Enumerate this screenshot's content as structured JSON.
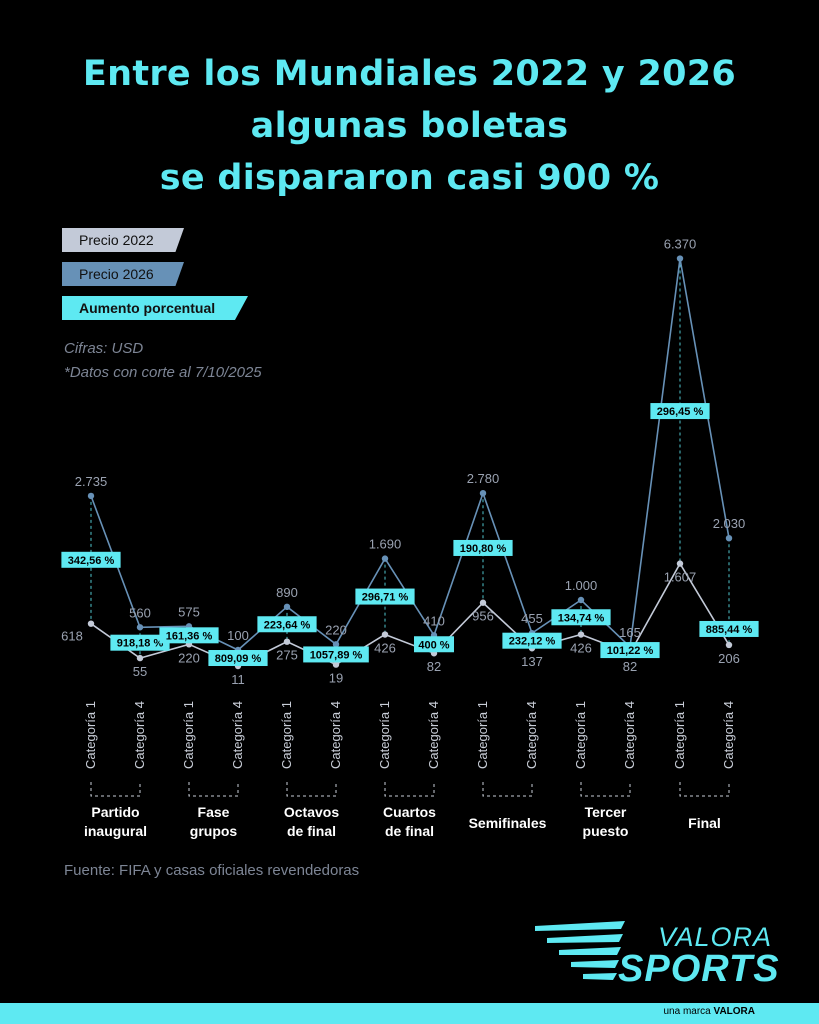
{
  "title_lines": [
    "Entre los Mundiales 2022 y 2026",
    "algunas boletas",
    "se dispararon casi 900 %"
  ],
  "legend": {
    "price_2022": "Precio 2022",
    "price_2026": "Precio 2026",
    "percent_increase": "Aumento porcentual"
  },
  "notes": {
    "units": "Cifras: USD",
    "cutoff": "*Datos con corte al 7/10/2025"
  },
  "source": "Fuente: FIFA y casas oficiales revendedoras",
  "logo": {
    "valora": "VALORA",
    "sports": "SPORTS"
  },
  "footer": {
    "prefix": "una marca",
    "brand": "VALORA"
  },
  "colors": {
    "background": "#000000",
    "accent": "#5ee9f2",
    "price_2022": "#c3cad8",
    "price_2026": "#6791b7",
    "muted_text": "#7d8595"
  },
  "chart_data": {
    "type": "line",
    "categories": [
      "Categoría 1",
      "Categoría 4",
      "Categoría 1",
      "Categoría 4",
      "Categoría 1",
      "Categoría 4",
      "Categoría 1",
      "Categoría 4",
      "Categoría 1",
      "Categoría 4",
      "Categoría 1",
      "Categoría 4",
      "Categoría 1",
      "Categoría 4"
    ],
    "groups": [
      {
        "lines": [
          "Partido",
          "inaugural"
        ]
      },
      {
        "lines": [
          "Fase",
          "grupos"
        ]
      },
      {
        "lines": [
          "Octavos",
          "de final"
        ]
      },
      {
        "lines": [
          "Cuartos",
          "de final"
        ]
      },
      {
        "lines": [
          "Semifinales"
        ]
      },
      {
        "lines": [
          "Tercer",
          "puesto"
        ]
      },
      {
        "lines": [
          "Final"
        ]
      }
    ],
    "series": [
      {
        "name": "Precio 2022",
        "values": [
          618,
          55,
          220,
          11,
          275,
          19,
          426,
          82,
          956,
          137,
          426,
          82,
          1607,
          206
        ],
        "labels": [
          "618",
          "55",
          "220",
          "11",
          "275",
          "19",
          "426",
          "82",
          "956",
          "137",
          "426",
          "82",
          "1.607",
          "206"
        ]
      },
      {
        "name": "Precio 2026",
        "values": [
          2735,
          560,
          575,
          100,
          890,
          220,
          1690,
          410,
          2780,
          455,
          1000,
          165,
          6370,
          2030
        ],
        "labels": [
          "2.735",
          "560",
          "575",
          "100",
          "890",
          "220",
          "1.690",
          "410",
          "2.780",
          "455",
          "1.000",
          "165",
          "6.370",
          "2.030"
        ]
      },
      {
        "name": "Aumento porcentual",
        "values": [
          342.56,
          918.18,
          161.36,
          809.09,
          223.64,
          1057.89,
          296.71,
          400,
          190.8,
          232.12,
          134.74,
          101.22,
          296.45,
          885.44
        ],
        "labels": [
          "342,56 %",
          "918,18 %",
          "161,36 %",
          "809,09 %",
          "223,64 %",
          "1057,89 %",
          "296,71 %",
          "400 %",
          "190,80 %",
          "232,12 %",
          "134,74 %",
          "101,22 %",
          "296,45 %",
          "885,44 %"
        ]
      }
    ]
  }
}
